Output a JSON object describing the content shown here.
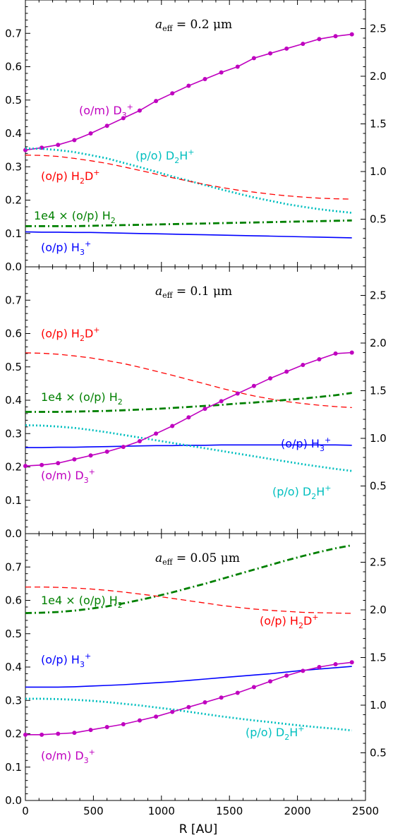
{
  "colors": {
    "D3p": "#bf00bf",
    "D2Hp": "#00bfbf",
    "H2Dp": "#ff0000",
    "H2": "#008000",
    "H3p": "#0000ff"
  },
  "chart_data": [
    {
      "type": "line",
      "title": "a_eff = 0.2 μm",
      "x": [
        0,
        120,
        240,
        360,
        480,
        600,
        720,
        840,
        960,
        1080,
        1200,
        1320,
        1440,
        1560,
        1680,
        1800,
        1920,
        2040,
        2160,
        2280,
        2400
      ],
      "xlim": [
        0,
        2500
      ],
      "xticks": [
        "0",
        "500",
        "1000",
        "1500",
        "2000",
        "2500"
      ],
      "xlabel": "R [AU]",
      "ylim_left": [
        0,
        0.8
      ],
      "yticks_left": [
        "0.0",
        "0.1",
        "0.2",
        "0.3",
        "0.4",
        "0.5",
        "0.6",
        "0.7"
      ],
      "ylim_right": [
        0,
        2.8
      ],
      "yticks_right": [
        "0.5",
        "1.0",
        "1.5",
        "2.0",
        "2.5"
      ],
      "series": [
        {
          "name": "(o/m) D3+",
          "axis": "right",
          "style": "solid-dots",
          "color": "#bf00bf",
          "values": [
            1.225,
            1.25,
            1.28,
            1.33,
            1.4,
            1.48,
            1.56,
            1.64,
            1.74,
            1.82,
            1.9,
            1.97,
            2.04,
            2.1,
            2.19,
            2.24,
            2.29,
            2.34,
            2.39,
            2.42,
            2.44
          ]
        },
        {
          "name": "(p/o) D2H+",
          "axis": "left",
          "style": "dotted",
          "color": "#00bfbf",
          "values": [
            0.355,
            0.354,
            0.35,
            0.344,
            0.335,
            0.325,
            0.312,
            0.299,
            0.285,
            0.271,
            0.258,
            0.245,
            0.232,
            0.22,
            0.208,
            0.198,
            0.188,
            0.18,
            0.173,
            0.167,
            0.162
          ]
        },
        {
          "name": "(o/p) H2D+",
          "axis": "left",
          "style": "dashed",
          "color": "#ff0000",
          "values": [
            0.335,
            0.334,
            0.331,
            0.325,
            0.318,
            0.31,
            0.3,
            0.289,
            0.278,
            0.267,
            0.257,
            0.247,
            0.238,
            0.23,
            0.224,
            0.218,
            0.213,
            0.209,
            0.206,
            0.204,
            0.203
          ]
        },
        {
          "name": "1e4 × (o/p) H2",
          "axis": "left",
          "style": "dashdot",
          "color": "#008000",
          "values": [
            0.122,
            0.122,
            0.122,
            0.122,
            0.123,
            0.124,
            0.125,
            0.126,
            0.127,
            0.128,
            0.129,
            0.13,
            0.131,
            0.132,
            0.133,
            0.134,
            0.135,
            0.136,
            0.137,
            0.138,
            0.139
          ]
        },
        {
          "name": "(o/p) H3+",
          "axis": "left",
          "style": "solid",
          "color": "#0000ff",
          "values": [
            0.105,
            0.104,
            0.104,
            0.103,
            0.103,
            0.102,
            0.101,
            0.1,
            0.099,
            0.098,
            0.097,
            0.096,
            0.095,
            0.094,
            0.093,
            0.092,
            0.091,
            0.09,
            0.089,
            0.088,
            0.087
          ]
        }
      ]
    },
    {
      "type": "line",
      "title": "a_eff = 0.1 μm",
      "x": [
        0,
        120,
        240,
        360,
        480,
        600,
        720,
        840,
        960,
        1080,
        1200,
        1320,
        1440,
        1560,
        1680,
        1800,
        1920,
        2040,
        2160,
        2280,
        2400
      ],
      "xlim": [
        0,
        2500
      ],
      "xticks": [
        "0",
        "500",
        "1000",
        "1500",
        "2000",
        "2500"
      ],
      "xlabel": "R [AU]",
      "ylim_left": [
        0,
        0.8
      ],
      "yticks_left": [
        "0.0",
        "0.1",
        "0.2",
        "0.3",
        "0.4",
        "0.5",
        "0.6",
        "0.7"
      ],
      "ylim_right": [
        0,
        2.8
      ],
      "yticks_right": [
        "0.5",
        "1.0",
        "1.5",
        "2.0",
        "2.5"
      ],
      "series": [
        {
          "name": "(o/p) H2D+",
          "axis": "left",
          "style": "dashed",
          "color": "#ff0000",
          "values": [
            0.542,
            0.541,
            0.538,
            0.533,
            0.527,
            0.519,
            0.51,
            0.499,
            0.487,
            0.475,
            0.462,
            0.449,
            0.436,
            0.424,
            0.413,
            0.404,
            0.396,
            0.39,
            0.385,
            0.381,
            0.378
          ]
        },
        {
          "name": "1e4 × (o/p) H2",
          "axis": "left",
          "style": "dashdot",
          "color": "#008000",
          "values": [
            0.365,
            0.365,
            0.365,
            0.366,
            0.367,
            0.368,
            0.37,
            0.372,
            0.374,
            0.377,
            0.38,
            0.383,
            0.386,
            0.39,
            0.393,
            0.397,
            0.401,
            0.405,
            0.41,
            0.415,
            0.422
          ]
        },
        {
          "name": "(o/p) H3+",
          "axis": "left",
          "style": "solid",
          "color": "#0000ff",
          "values": [
            0.258,
            0.258,
            0.259,
            0.259,
            0.26,
            0.261,
            0.262,
            0.263,
            0.264,
            0.264,
            0.265,
            0.265,
            0.266,
            0.266,
            0.266,
            0.266,
            0.266,
            0.266,
            0.266,
            0.266,
            0.265
          ]
        },
        {
          "name": "(p/o) D2H+",
          "axis": "left",
          "style": "dotted",
          "color": "#00bfbf",
          "values": [
            0.325,
            0.324,
            0.321,
            0.317,
            0.311,
            0.304,
            0.296,
            0.288,
            0.28,
            0.272,
            0.264,
            0.256,
            0.248,
            0.24,
            0.232,
            0.224,
            0.216,
            0.208,
            0.201,
            0.194,
            0.188
          ]
        },
        {
          "name": "(o/m) D3+",
          "axis": "right",
          "style": "solid-dots",
          "color": "#bf00bf",
          "values": [
            0.71,
            0.72,
            0.74,
            0.78,
            0.82,
            0.86,
            0.91,
            0.97,
            1.05,
            1.13,
            1.22,
            1.31,
            1.39,
            1.47,
            1.55,
            1.63,
            1.7,
            1.77,
            1.83,
            1.89,
            1.9
          ]
        }
      ]
    },
    {
      "type": "line",
      "title": "a_eff = 0.05 μm",
      "x": [
        0,
        120,
        240,
        360,
        480,
        600,
        720,
        840,
        960,
        1080,
        1200,
        1320,
        1440,
        1560,
        1680,
        1800,
        1920,
        2040,
        2160,
        2280,
        2400
      ],
      "xlim": [
        0,
        2500
      ],
      "xticks": [
        "0",
        "500",
        "1000",
        "1500",
        "2000",
        "2500"
      ],
      "xlabel": "R [AU]",
      "ylim_left": [
        0,
        0.8
      ],
      "yticks_left": [
        "0.0",
        "0.1",
        "0.2",
        "0.3",
        "0.4",
        "0.5",
        "0.6",
        "0.7"
      ],
      "ylim_right": [
        0,
        2.8
      ],
      "yticks_right": [
        "0.5",
        "1.0",
        "1.5",
        "2.0",
        "2.5"
      ],
      "series": [
        {
          "name": "1e4 × (o/p) H2",
          "axis": "left",
          "style": "dashdot",
          "color": "#008000",
          "values": [
            0.562,
            0.563,
            0.565,
            0.569,
            0.575,
            0.582,
            0.591,
            0.601,
            0.612,
            0.624,
            0.637,
            0.65,
            0.664,
            0.678,
            0.692,
            0.706,
            0.72,
            0.733,
            0.745,
            0.756,
            0.765
          ]
        },
        {
          "name": "(o/p) H2D+",
          "axis": "left",
          "style": "dashed",
          "color": "#ff0000",
          "values": [
            0.64,
            0.64,
            0.639,
            0.637,
            0.634,
            0.63,
            0.625,
            0.619,
            0.613,
            0.606,
            0.599,
            0.592,
            0.585,
            0.579,
            0.574,
            0.57,
            0.567,
            0.564,
            0.563,
            0.562,
            0.561
          ]
        },
        {
          "name": "(o/p) H3+",
          "axis": "left",
          "style": "solid",
          "color": "#0000ff",
          "values": [
            0.34,
            0.34,
            0.34,
            0.341,
            0.343,
            0.345,
            0.347,
            0.35,
            0.353,
            0.356,
            0.36,
            0.364,
            0.368,
            0.372,
            0.376,
            0.38,
            0.385,
            0.39,
            0.394,
            0.398,
            0.402
          ]
        },
        {
          "name": "(p/o) D2H+",
          "axis": "left",
          "style": "dotted",
          "color": "#00bfbf",
          "values": [
            0.305,
            0.305,
            0.304,
            0.302,
            0.299,
            0.295,
            0.29,
            0.285,
            0.279,
            0.273,
            0.266,
            0.259,
            0.252,
            0.246,
            0.24,
            0.235,
            0.229,
            0.224,
            0.219,
            0.215,
            0.21
          ]
        },
        {
          "name": "(o/m) D3+",
          "axis": "right",
          "style": "solid-dots",
          "color": "#bf00bf",
          "values": [
            0.69,
            0.69,
            0.7,
            0.71,
            0.74,
            0.77,
            0.8,
            0.84,
            0.88,
            0.93,
            0.98,
            1.03,
            1.08,
            1.13,
            1.19,
            1.25,
            1.31,
            1.36,
            1.4,
            1.43,
            1.45
          ]
        }
      ]
    }
  ],
  "panels": [
    {
      "title_var": "a",
      "title_sub": "eff",
      "title_rest": " = 0.2 μm",
      "labels": [
        {
          "key": "D3p",
          "parts": [
            {
              "t": "(o/m) D"
            },
            {
              "t": "3",
              "s": "sub"
            },
            {
              "t": "+",
              "s": "sup"
            }
          ]
        },
        {
          "key": "D2Hp",
          "parts": [
            {
              "t": "(p/o) D"
            },
            {
              "t": "2",
              "s": "sub"
            },
            {
              "t": "H"
            },
            {
              "t": "+",
              "s": "sup"
            }
          ]
        },
        {
          "key": "H2Dp",
          "parts": [
            {
              "t": "(o/p) H"
            },
            {
              "t": "2",
              "s": "sub"
            },
            {
              "t": "D"
            },
            {
              "t": "+",
              "s": "sup"
            }
          ]
        },
        {
          "key": "H2",
          "parts": [
            {
              "t": "1e4 × (o/p) H"
            },
            {
              "t": "2",
              "s": "sub"
            }
          ]
        },
        {
          "key": "H3p",
          "parts": [
            {
              "t": "(o/p) H"
            },
            {
              "t": "3",
              "s": "sub"
            },
            {
              "t": "+",
              "s": "sup"
            }
          ]
        }
      ]
    },
    {
      "title_var": "a",
      "title_sub": "eff",
      "title_rest": " = 0.1 μm",
      "labels": [
        {
          "key": "H2Dp",
          "parts": [
            {
              "t": "(o/p) H"
            },
            {
              "t": "2",
              "s": "sub"
            },
            {
              "t": "D"
            },
            {
              "t": "+",
              "s": "sup"
            }
          ]
        },
        {
          "key": "H2",
          "parts": [
            {
              "t": "1e4 × (o/p) H"
            },
            {
              "t": "2",
              "s": "sub"
            }
          ]
        },
        {
          "key": "H3p",
          "parts": [
            {
              "t": "(o/p) H"
            },
            {
              "t": "3",
              "s": "sub"
            },
            {
              "t": "+",
              "s": "sup"
            }
          ]
        },
        {
          "key": "D3p",
          "parts": [
            {
              "t": "(o/m) D"
            },
            {
              "t": "3",
              "s": "sub"
            },
            {
              "t": "+",
              "s": "sup"
            }
          ]
        },
        {
          "key": "D2Hp",
          "parts": [
            {
              "t": "(p/o) D"
            },
            {
              "t": "2",
              "s": "sub"
            },
            {
              "t": "H"
            },
            {
              "t": "+",
              "s": "sup"
            }
          ]
        }
      ]
    },
    {
      "title_var": "a",
      "title_sub": "eff",
      "title_rest": " = 0.05 μm",
      "labels": [
        {
          "key": "H2",
          "parts": [
            {
              "t": "1e4 × (o/p) H"
            },
            {
              "t": "2",
              "s": "sub"
            }
          ]
        },
        {
          "key": "H2Dp",
          "parts": [
            {
              "t": "(o/p) H"
            },
            {
              "t": "2",
              "s": "sub"
            },
            {
              "t": "D"
            },
            {
              "t": "+",
              "s": "sup"
            }
          ]
        },
        {
          "key": "H3p",
          "parts": [
            {
              "t": "(o/p) H"
            },
            {
              "t": "3",
              "s": "sub"
            },
            {
              "t": "+",
              "s": "sup"
            }
          ]
        },
        {
          "key": "D3p",
          "parts": [
            {
              "t": "(o/m) D"
            },
            {
              "t": "3",
              "s": "sub"
            },
            {
              "t": "+",
              "s": "sup"
            }
          ]
        },
        {
          "key": "D2Hp",
          "parts": [
            {
              "t": "(p/o) D"
            },
            {
              "t": "2",
              "s": "sub"
            },
            {
              "t": "H"
            },
            {
              "t": "+",
              "s": "sup"
            }
          ]
        }
      ]
    }
  ]
}
